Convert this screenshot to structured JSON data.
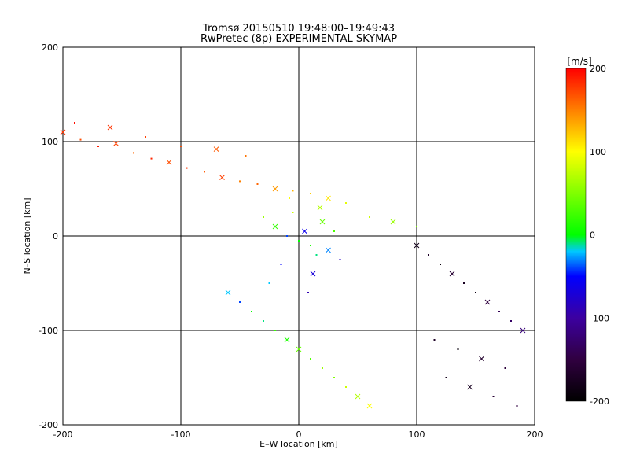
{
  "chart_data": {
    "type": "scatter",
    "title": "Tromsø 20150510 19:48:00–19:49:43",
    "subtitle": "RwPretec (8p) EXPERIMENTAL SKYMAP",
    "xlabel": "E–W location [km]",
    "ylabel": "N–S location [km]",
    "xlim": [
      -200,
      200
    ],
    "ylim": [
      -200,
      200
    ],
    "xticks": [
      "-200",
      "-100",
      "0",
      "100",
      "200"
    ],
    "yticks": [
      "-200",
      "-100",
      "0",
      "100",
      "200"
    ],
    "grid": true,
    "gridlines": {
      "x": [
        -100,
        0,
        100
      ],
      "y": [
        -100,
        0,
        100
      ]
    },
    "colorbar": {
      "label": "[m/s]",
      "range": [
        -200,
        200
      ],
      "ticks": [
        "200",
        "100",
        "0",
        "-100",
        "-200"
      ],
      "colormap": [
        "#000000",
        "#300040",
        "#3c00a0",
        "#0000ff",
        "#00c8ff",
        "#00ff00",
        "#ffff00",
        "#ff8000",
        "#ff0000"
      ]
    },
    "marker_types": [
      "dot",
      "x"
    ],
    "point_groups": [
      {
        "x": [
          -200,
          -185,
          -170,
          -155,
          -140,
          -125,
          -110,
          -95,
          -80,
          -65,
          -50,
          -35,
          -20,
          -5,
          10,
          25,
          40,
          60,
          80,
          100,
          -190,
          -160,
          -130,
          -100,
          -70,
          -45
        ],
        "y": [
          110,
          102,
          95,
          98,
          88,
          82,
          78,
          72,
          68,
          62,
          58,
          55,
          50,
          48,
          45,
          40,
          35,
          20,
          15,
          10,
          120,
          115,
          105,
          95,
          92,
          85
        ],
        "v": [
          180,
          170,
          190,
          175,
          160,
          185,
          170,
          180,
          165,
          175,
          150,
          160,
          140,
          130,
          120,
          110,
          90,
          80,
          60,
          50,
          195,
          180,
          175,
          170,
          165,
          155
        ],
        "marker": "mixed"
      },
      {
        "x": [
          -20,
          -10,
          0,
          5,
          10,
          15,
          20,
          -30,
          -5,
          25,
          30,
          -15,
          12,
          -25,
          8,
          18,
          -8,
          35
        ],
        "y": [
          10,
          0,
          -5,
          5,
          -10,
          -20,
          15,
          20,
          25,
          -15,
          5,
          -30,
          -40,
          -50,
          -60,
          30,
          40,
          -25
        ],
        "v": [
          20,
          -40,
          0,
          -60,
          10,
          -10,
          40,
          60,
          80,
          -30,
          30,
          -50,
          -70,
          -20,
          -90,
          70,
          100,
          -80
        ],
        "marker": "mixed"
      },
      {
        "x": [
          100,
          110,
          120,
          130,
          140,
          150,
          160,
          170,
          180,
          190,
          115,
          135,
          155,
          175,
          125,
          145,
          165,
          185
        ],
        "y": [
          -10,
          -20,
          -30,
          -40,
          -50,
          -60,
          -70,
          -80,
          -90,
          -100,
          -110,
          -120,
          -130,
          -140,
          -150,
          -160,
          -170,
          -180
        ],
        "v": [
          -180,
          -170,
          -190,
          -160,
          -175,
          -185,
          -150,
          -140,
          -130,
          -120,
          -170,
          -190,
          -165,
          -155,
          -180,
          -175,
          -160,
          -150
        ],
        "marker": "mixed"
      },
      {
        "x": [
          -60,
          -40,
          -20,
          0,
          20,
          40,
          60,
          -50,
          -30,
          -10,
          10,
          30,
          50
        ],
        "y": [
          -60,
          -80,
          -100,
          -120,
          -140,
          -160,
          -180,
          -70,
          -90,
          -110,
          -130,
          -150,
          -170
        ],
        "v": [
          -20,
          0,
          20,
          40,
          60,
          80,
          100,
          -40,
          -10,
          10,
          30,
          50,
          70
        ],
        "marker": "mixed"
      }
    ]
  }
}
